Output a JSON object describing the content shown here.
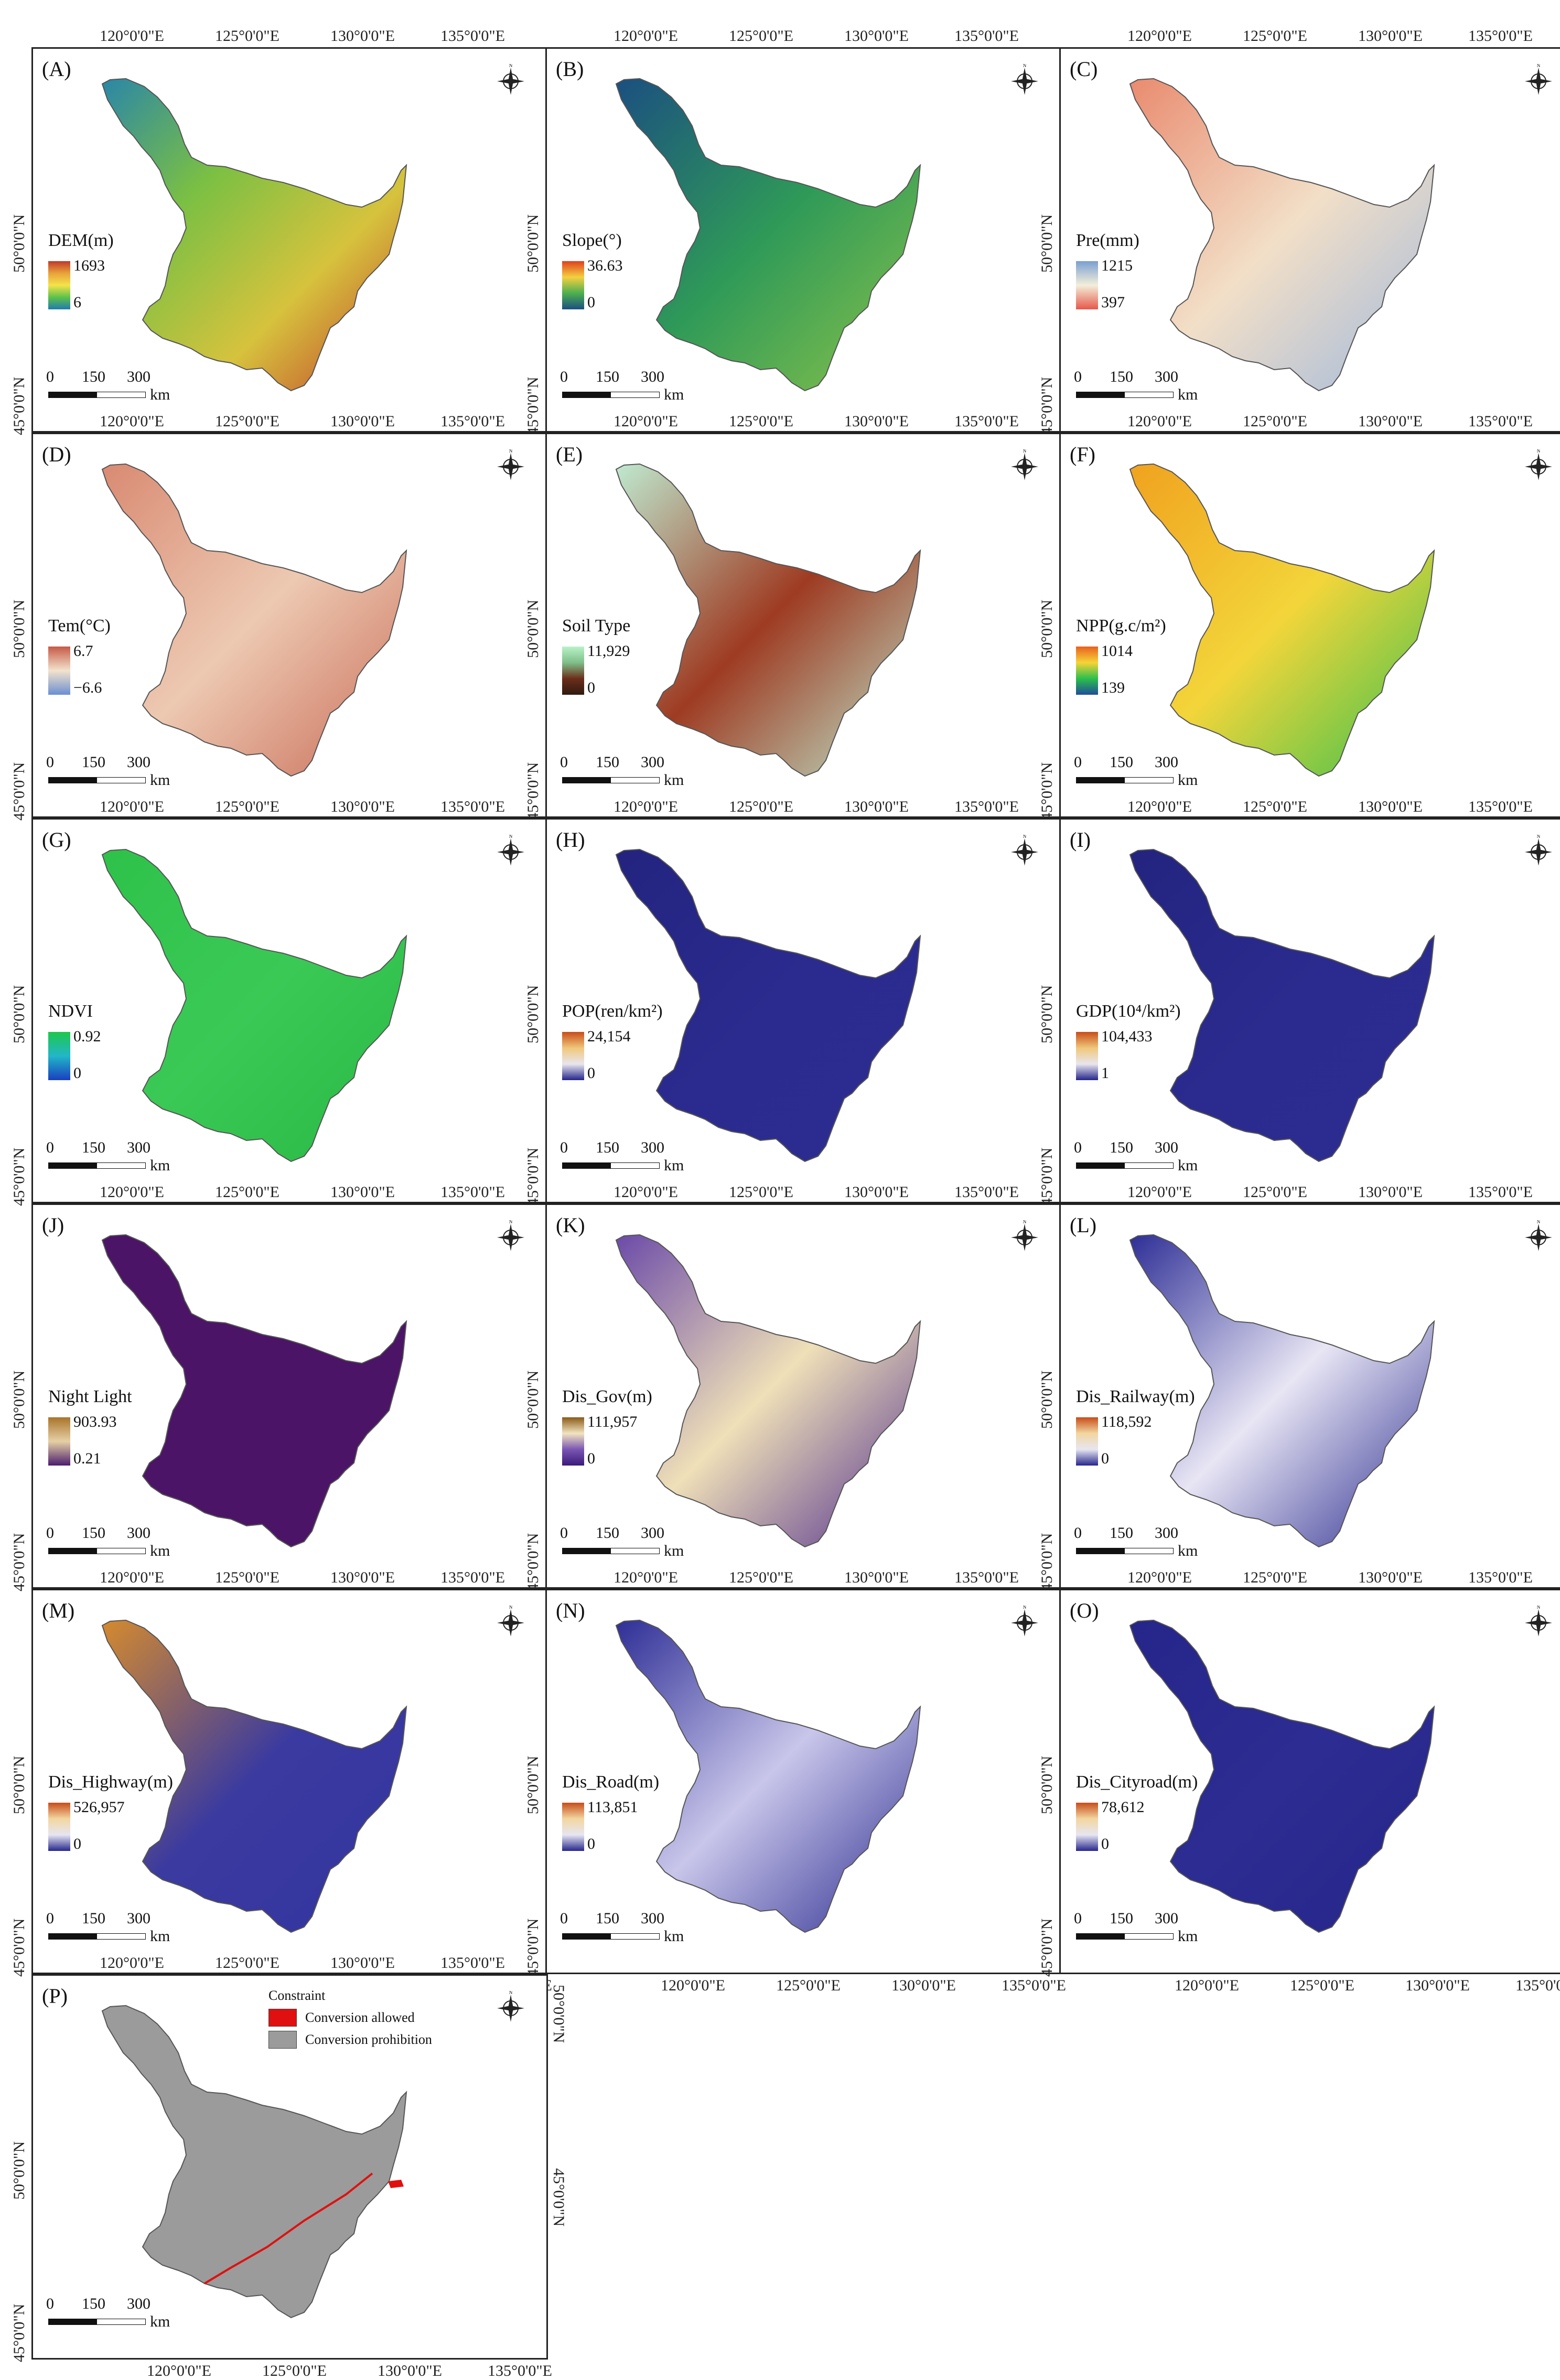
{
  "figure": {
    "ticks_top": [
      "120°0'0\"E",
      "125°0'0\"E",
      "130°0'0\"E",
      "135°0'0\"E"
    ],
    "ticks_bottom": [
      "120°0'0\"E",
      "125°0'0\"E",
      "130°0'0\"E",
      "135°0'0\"E"
    ],
    "ticks_left": [
      "45°0'0\"N",
      "50°0'0\"N"
    ],
    "ticks_right": [
      "50°0'0\"N",
      "45°0'0\"N"
    ],
    "scale_values": [
      "0",
      "150",
      "300"
    ],
    "scale_unit": "km",
    "panels": [
      {
        "label": "(A)",
        "title": "DEM(m)",
        "max": "1693",
        "min": "6",
        "colors": [
          "#c0392b",
          "#e8a23a",
          "#f4e34a",
          "#5cc24a",
          "#1f7bb0"
        ],
        "fill": [
          "#2a86a8",
          "#7bc043",
          "#d6c23d",
          "#c0392b"
        ]
      },
      {
        "label": "(B)",
        "title": "Slope(°)",
        "max": "36.63",
        "min": "0",
        "colors": [
          "#e0401f",
          "#f4d03f",
          "#4caf50",
          "#1b4f80"
        ],
        "fill": [
          "#1b4f80",
          "#2f9a58",
          "#8bc34a"
        ]
      },
      {
        "label": "(C)",
        "title": "Pre(mm)",
        "max": "1215",
        "min": "397",
        "colors": [
          "#7a9fd1",
          "#f3efd9",
          "#e6584b"
        ],
        "fill": [
          "#e98b6f",
          "#f2dfc7",
          "#9fb8dd"
        ]
      },
      {
        "label": "(D)",
        "title": "Tem(°C)",
        "max": "6.7",
        "min": "−6.6",
        "colors": [
          "#c65a46",
          "#f2e3cd",
          "#6b8fd1"
        ],
        "fill": [
          "#d98a72",
          "#edc9b2",
          "#c86b56"
        ]
      },
      {
        "label": "(E)",
        "title": "Soil Type",
        "max": "11,929",
        "min": "0",
        "colors": [
          "#b9f2c8",
          "#7fbf8a",
          "#6b2e1a",
          "#2f1a10"
        ],
        "fill": [
          "#bfead0",
          "#9e3b22",
          "#bfead0"
        ]
      },
      {
        "label": "(F)",
        "title": "NPP(g.c/m²)",
        "max": "1014",
        "min": "139",
        "colors": [
          "#e8611f",
          "#f6d437",
          "#2bbf4c",
          "#1f4d9a"
        ],
        "fill": [
          "#f0a21f",
          "#f3d53a",
          "#35c04e"
        ]
      },
      {
        "label": "(G)",
        "title": "NDVI",
        "max": "0.92",
        "min": "0",
        "colors": [
          "#1ec84a",
          "#22b6c9",
          "#1a3fbf"
        ],
        "fill": [
          "#2ec24a",
          "#3bc956",
          "#2ab845"
        ]
      },
      {
        "label": "(H)",
        "title": "POP(ren/km²)",
        "max": "24,154",
        "min": "0",
        "colors": [
          "#c74d1a",
          "#f0c77a",
          "#e8e6ee",
          "#24248a"
        ],
        "fill": [
          "#23237f",
          "#2b2b8f",
          "#2c2c90"
        ]
      },
      {
        "label": "(I)",
        "title": "GDP(10⁴/km²)",
        "max": "104,433",
        "min": "1",
        "colors": [
          "#c74d1a",
          "#f0c77a",
          "#e8e6ee",
          "#24248a"
        ],
        "fill": [
          "#23237f",
          "#2b2b8f",
          "#2c2c90"
        ]
      },
      {
        "label": "(J)",
        "title": "Night Light",
        "max": "903.93",
        "min": "0.21",
        "colors": [
          "#a9742a",
          "#e5d0a5",
          "#4b1c6e"
        ],
        "fill": [
          "#4b1466",
          "#4b1466",
          "#4b1466"
        ]
      },
      {
        "label": "(K)",
        "title": "Dis_Gov(m)",
        "max": "111,957",
        "min": "0",
        "colors": [
          "#8a5a18",
          "#f2e4c0",
          "#7a55b3",
          "#3a1a7a"
        ],
        "fill": [
          "#6b4aa8",
          "#efe0b8",
          "#4e2c8c"
        ]
      },
      {
        "label": "(L)",
        "title": "Dis_Railway(m)",
        "max": "118,592",
        "min": "0",
        "colors": [
          "#c74d1a",
          "#f2d6a0",
          "#e6e6f2",
          "#26268c"
        ],
        "fill": [
          "#2e2e96",
          "#e8e6f4",
          "#2a2a8e"
        ]
      },
      {
        "label": "(M)",
        "title": "Dis_Highway(m)",
        "max": "526,957",
        "min": "0",
        "colors": [
          "#c74d1a",
          "#f2d6a0",
          "#e6e6f2",
          "#26268c"
        ],
        "fill": [
          "#d58a2e",
          "#3a3aa0",
          "#3434a0"
        ]
      },
      {
        "label": "(N)",
        "title": "Dis_Road(m)",
        "max": "113,851",
        "min": "0",
        "colors": [
          "#c74d1a",
          "#f2d6a0",
          "#e6e6f2",
          "#26268c"
        ],
        "fill": [
          "#2e2e96",
          "#c9c6ea",
          "#2a2a8e"
        ]
      },
      {
        "label": "(O)",
        "title": "Dis_Cityroad(m)",
        "max": "78,612",
        "min": "0",
        "colors": [
          "#c74d1a",
          "#f2d6a0",
          "#e6e6f2",
          "#26268c"
        ],
        "fill": [
          "#25258a",
          "#2c2c92",
          "#25258a"
        ]
      },
      {
        "label": "(P)",
        "title": "",
        "max": "",
        "min": "",
        "colors": [],
        "fill": [
          "#9b9b9b",
          "#9b9b9b",
          "#9b9b9b"
        ],
        "legend_title": "Constraint",
        "legend_items": [
          {
            "text": "Conversion allowed",
            "color": "#e01010"
          },
          {
            "text": "Conversion prohibition",
            "color": "#9b9b9b"
          }
        ]
      }
    ]
  }
}
